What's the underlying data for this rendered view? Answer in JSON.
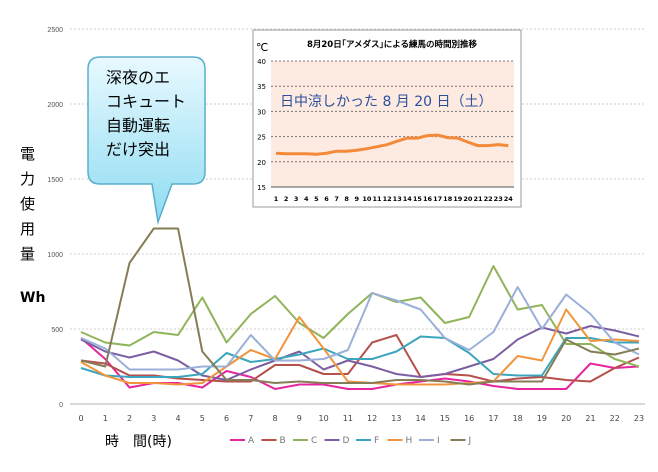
{
  "chart_data": {
    "type": "line",
    "xlabel": "時　間(時)",
    "ylabel_chars": [
      "電",
      "力",
      "使",
      "用",
      "量"
    ],
    "yunit": "Wh",
    "x": [
      0,
      1,
      2,
      3,
      4,
      5,
      6,
      7,
      8,
      9,
      10,
      11,
      12,
      13,
      14,
      15,
      16,
      17,
      18,
      19,
      20,
      21,
      22,
      23
    ],
    "ylim": [
      0,
      2500
    ],
    "yticks": [
      0,
      500,
      1000,
      1500,
      2000,
      2500
    ],
    "legend_position": "bottom",
    "series": [
      {
        "name": "A",
        "color": "#e6259e",
        "values": [
          440,
          300,
          110,
          140,
          140,
          110,
          220,
          180,
          100,
          130,
          130,
          100,
          100,
          130,
          150,
          170,
          150,
          120,
          100,
          100,
          100,
          270,
          240,
          250
        ]
      },
      {
        "name": "B",
        "color": "#b5504a",
        "values": [
          290,
          270,
          190,
          190,
          170,
          160,
          150,
          150,
          260,
          260,
          200,
          200,
          410,
          460,
          180,
          200,
          190,
          150,
          170,
          180,
          160,
          150,
          240,
          310
        ]
      },
      {
        "name": "C",
        "color": "#8fb45a",
        "values": [
          480,
          410,
          390,
          480,
          460,
          710,
          410,
          600,
          720,
          540,
          440,
          600,
          740,
          680,
          710,
          540,
          580,
          920,
          630,
          660,
          400,
          400,
          300,
          250
        ]
      },
      {
        "name": "D",
        "color": "#7c5ea2",
        "values": [
          430,
          350,
          310,
          350,
          290,
          190,
          160,
          230,
          290,
          350,
          230,
          290,
          250,
          200,
          180,
          200,
          250,
          300,
          430,
          510,
          470,
          520,
          490,
          450
        ]
      },
      {
        "name": "F",
        "color": "#3ba5bd",
        "values": [
          240,
          190,
          180,
          180,
          180,
          200,
          340,
          280,
          300,
          330,
          370,
          300,
          300,
          350,
          450,
          440,
          340,
          200,
          190,
          190,
          440,
          440,
          410,
          410
        ]
      },
      {
        "name": "H",
        "color": "#f1953d",
        "values": [
          280,
          190,
          140,
          140,
          130,
          140,
          250,
          360,
          300,
          580,
          370,
          150,
          140,
          130,
          130,
          130,
          140,
          150,
          320,
          290,
          630,
          420,
          430,
          420
        ]
      },
      {
        "name": "I",
        "color": "#9bb0d8",
        "values": [
          440,
          370,
          230,
          230,
          230,
          250,
          250,
          460,
          290,
          290,
          300,
          360,
          740,
          690,
          630,
          440,
          360,
          480,
          780,
          500,
          730,
          600,
          410,
          330
        ]
      },
      {
        "name": "J",
        "color": "#857d55",
        "values": [
          290,
          250,
          940,
          1170,
          1170,
          350,
          160,
          160,
          140,
          150,
          140,
          140,
          140,
          160,
          160,
          150,
          130,
          150,
          150,
          150,
          430,
          350,
          330,
          370
        ]
      }
    ],
    "inset": {
      "type": "line",
      "title": "8月20日｢アメダス｣による練馬の時間別推移",
      "yunit": "℃",
      "annotation": "日中涼しかった 8 月 20 日（土）",
      "x": [
        1,
        2,
        3,
        4,
        5,
        6,
        7,
        8,
        9,
        10,
        11,
        12,
        13,
        14,
        15,
        16,
        17,
        18,
        19,
        20,
        21,
        22,
        23,
        24
      ],
      "ylim": [
        15,
        40
      ],
      "yticks": [
        15,
        20,
        25,
        30,
        35,
        40
      ],
      "color": "#f28a3a",
      "values": [
        21.7,
        21.6,
        21.6,
        21.6,
        21.5,
        21.7,
        22.1,
        22.1,
        22.3,
        22.6,
        23.0,
        23.4,
        24.1,
        24.7,
        24.7,
        25.2,
        25.3,
        24.8,
        24.7,
        23.9,
        23.2,
        23.2,
        23.4,
        23.2
      ]
    },
    "callout": {
      "lines": [
        "深夜のエ",
        "コキュート",
        "自動運転",
        "だけ突出"
      ]
    }
  }
}
